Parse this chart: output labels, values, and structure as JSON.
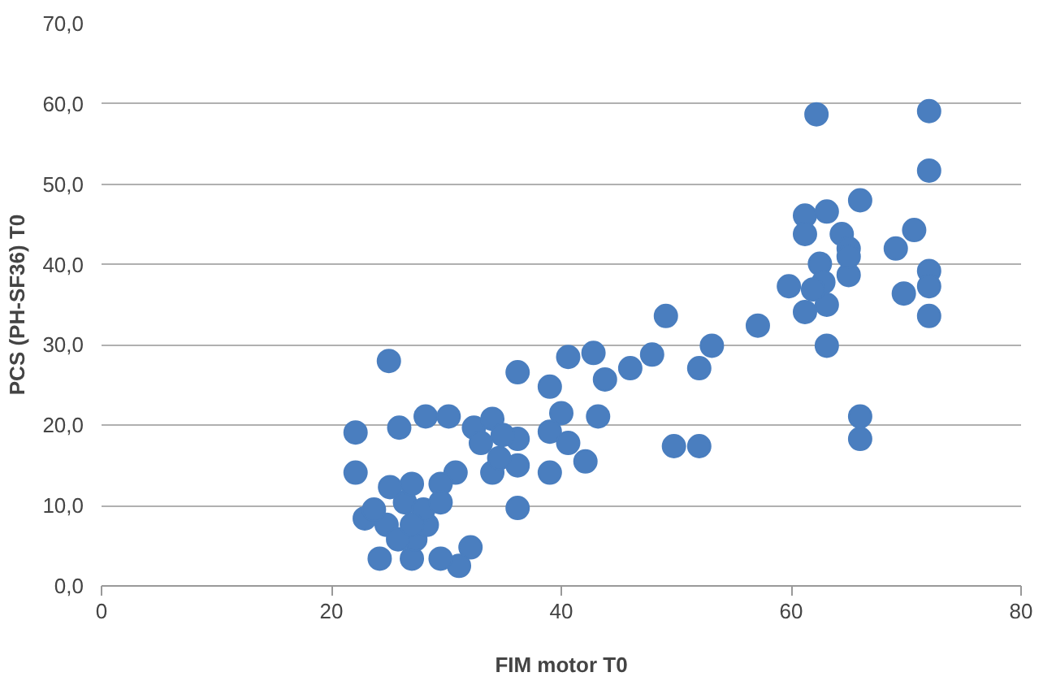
{
  "chart_data": {
    "type": "scatter",
    "xlabel": "FIM motor T0",
    "ylabel": "PCS (PH-SF36) T0",
    "xlim": [
      0,
      80
    ],
    "xticks": [
      0,
      20,
      40,
      60,
      80
    ],
    "ylim": [
      0,
      70
    ],
    "yticks": [
      {
        "value": 0,
        "label": "0,0"
      },
      {
        "value": 10,
        "label": "10,0"
      },
      {
        "value": 20,
        "label": "20,0"
      },
      {
        "value": 30,
        "label": "30,0"
      },
      {
        "value": 40,
        "label": "40,0"
      },
      {
        "value": 50,
        "label": "50,0"
      },
      {
        "value": 60,
        "label": "60,0"
      },
      {
        "value": 70,
        "label": "70,0"
      }
    ],
    "grid": "y",
    "marker": "circle",
    "series": [
      {
        "color": "#4a7ebf",
        "x": [
          25.0,
          22.1,
          22.1,
          22.9,
          25.9,
          28.2,
          30.2,
          32.4,
          34.0,
          33.0,
          36.2,
          36.2,
          36.2,
          34.0,
          36.2,
          32.1,
          31.1,
          29.5,
          30.8,
          29.5,
          24.2,
          27.0,
          27.3,
          24.8,
          26.4,
          25.1,
          27.0,
          28.3,
          28.0,
          25.8,
          39.0,
          39.0,
          40.0,
          39.0,
          40.6,
          42.1,
          43.2,
          40.6,
          42.8,
          43.8,
          46.0,
          47.9,
          49.1,
          49.8,
          52.0,
          52.0,
          53.1,
          57.1,
          59.8,
          61.2,
          62.2,
          61.2,
          61.2,
          63.1,
          62.5,
          62.8,
          63.1,
          63.1,
          64.4,
          65.0,
          65.0,
          66.0,
          66.0,
          66.0,
          69.1,
          70.7,
          69.8,
          72.0,
          72.0,
          72.0,
          72.0,
          72.0,
          65.0,
          61.9,
          23.7,
          27.0,
          34.6,
          34.9,
          29.5
        ],
        "values": [
          28.0,
          19.1,
          14.1,
          8.4,
          19.7,
          21.1,
          21.1,
          19.7,
          20.8,
          17.8,
          26.6,
          18.3,
          15.0,
          14.1,
          9.7,
          4.8,
          2.5,
          3.4,
          14.1,
          12.7,
          3.4,
          3.4,
          5.8,
          7.6,
          10.4,
          12.3,
          12.7,
          7.6,
          9.5,
          5.8,
          24.8,
          14.1,
          21.5,
          19.2,
          17.8,
          15.5,
          21.1,
          28.5,
          29.0,
          25.7,
          27.1,
          28.8,
          33.6,
          17.4,
          17.4,
          27.1,
          29.9,
          32.4,
          37.3,
          34.1,
          58.7,
          46.1,
          43.8,
          46.6,
          40.1,
          37.8,
          35.0,
          29.9,
          43.8,
          42.0,
          38.7,
          48.0,
          21.1,
          18.3,
          42.0,
          44.3,
          36.4,
          59.1,
          51.7,
          39.2,
          37.3,
          33.6,
          41.0,
          36.9,
          9.5,
          7.6,
          15.9,
          18.8,
          10.4
        ]
      }
    ]
  }
}
